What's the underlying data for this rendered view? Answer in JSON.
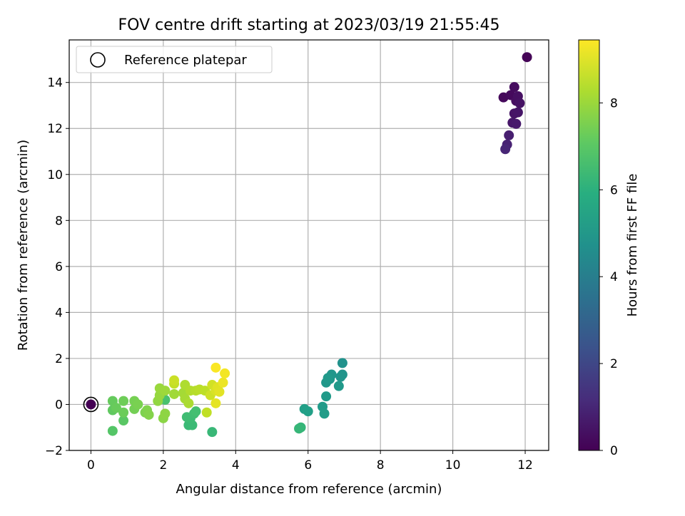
{
  "chart_data": {
    "type": "scatter",
    "title": "FOV centre drift starting at 2023/03/19 21:55:45",
    "xlabel": "Angular distance from reference (arcmin)",
    "ylabel": "Rotation from reference (arcmin)",
    "xlim": [
      -0.6,
      12.65
    ],
    "ylim": [
      -2.0,
      15.85
    ],
    "xticks": [
      0,
      2,
      4,
      6,
      8,
      10,
      12
    ],
    "yticks": [
      -2,
      0,
      2,
      4,
      6,
      8,
      10,
      12,
      14
    ],
    "grid": true,
    "legend": {
      "position": "top-left",
      "entries": [
        "Reference platepar"
      ]
    },
    "reference_point": {
      "x": 0,
      "y": 0
    },
    "colorbar": {
      "label": "Hours from first FF file",
      "range": [
        0,
        9.45
      ],
      "ticks": [
        0,
        2,
        4,
        6,
        8
      ],
      "colormap": "viridis"
    },
    "points": [
      {
        "x": 12.05,
        "y": 15.1,
        "h": 0.1
      },
      {
        "x": 11.4,
        "y": 13.35,
        "h": 0.2
      },
      {
        "x": 11.6,
        "y": 13.45,
        "h": 0.25
      },
      {
        "x": 11.7,
        "y": 13.8,
        "h": 0.3
      },
      {
        "x": 11.75,
        "y": 13.2,
        "h": 0.35
      },
      {
        "x": 11.8,
        "y": 13.4,
        "h": 0.4
      },
      {
        "x": 11.85,
        "y": 13.1,
        "h": 0.45
      },
      {
        "x": 11.7,
        "y": 12.65,
        "h": 0.5
      },
      {
        "x": 11.8,
        "y": 12.7,
        "h": 0.55
      },
      {
        "x": 11.65,
        "y": 12.25,
        "h": 0.6
      },
      {
        "x": 11.75,
        "y": 12.2,
        "h": 0.65
      },
      {
        "x": 11.55,
        "y": 11.7,
        "h": 0.8
      },
      {
        "x": 11.5,
        "y": 11.3,
        "h": 0.9
      },
      {
        "x": 11.45,
        "y": 11.1,
        "h": 1.0
      },
      {
        "x": 0.0,
        "y": 0.0,
        "h": 0.0
      },
      {
        "x": 6.95,
        "y": 1.8,
        "h": 4.8
      },
      {
        "x": 6.95,
        "y": 1.3,
        "h": 4.85
      },
      {
        "x": 6.9,
        "y": 1.2,
        "h": 4.9
      },
      {
        "x": 6.65,
        "y": 1.3,
        "h": 4.95
      },
      {
        "x": 6.6,
        "y": 1.1,
        "h": 5.0
      },
      {
        "x": 6.5,
        "y": 0.95,
        "h": 5.0
      },
      {
        "x": 6.55,
        "y": 1.15,
        "h": 5.05
      },
      {
        "x": 6.85,
        "y": 0.8,
        "h": 5.05
      },
      {
        "x": 6.5,
        "y": 0.35,
        "h": 5.1
      },
      {
        "x": 6.4,
        "y": -0.1,
        "h": 5.15
      },
      {
        "x": 6.45,
        "y": -0.4,
        "h": 5.2
      },
      {
        "x": 5.9,
        "y": -0.2,
        "h": 5.3
      },
      {
        "x": 6.0,
        "y": -0.3,
        "h": 5.35
      },
      {
        "x": 5.8,
        "y": -1.0,
        "h": 6.2
      },
      {
        "x": 5.75,
        "y": -1.05,
        "h": 6.25
      },
      {
        "x": 3.35,
        "y": -1.2,
        "h": 6.3
      },
      {
        "x": 2.7,
        "y": -0.9,
        "h": 6.35
      },
      {
        "x": 2.8,
        "y": -0.9,
        "h": 6.4
      },
      {
        "x": 2.75,
        "y": -0.6,
        "h": 6.45
      },
      {
        "x": 2.65,
        "y": -0.55,
        "h": 6.5
      },
      {
        "x": 2.85,
        "y": -0.4,
        "h": 6.55
      },
      {
        "x": 2.9,
        "y": -0.3,
        "h": 6.6
      },
      {
        "x": 2.05,
        "y": 0.2,
        "h": 6.7
      },
      {
        "x": 0.6,
        "y": -1.15,
        "h": 6.9
      },
      {
        "x": 0.9,
        "y": -0.7,
        "h": 7.0
      },
      {
        "x": 0.6,
        "y": -0.25,
        "h": 7.1
      },
      {
        "x": 0.6,
        "y": 0.15,
        "h": 7.2
      },
      {
        "x": 0.7,
        "y": -0.15,
        "h": 7.25
      },
      {
        "x": 0.9,
        "y": -0.35,
        "h": 7.3
      },
      {
        "x": 0.9,
        "y": 0.15,
        "h": 7.35
      },
      {
        "x": 1.2,
        "y": -0.2,
        "h": 7.45
      },
      {
        "x": 1.2,
        "y": 0.15,
        "h": 7.5
      },
      {
        "x": 1.3,
        "y": 0.0,
        "h": 7.55
      },
      {
        "x": 1.5,
        "y": -0.35,
        "h": 7.6
      },
      {
        "x": 1.55,
        "y": -0.25,
        "h": 7.65
      },
      {
        "x": 1.6,
        "y": -0.45,
        "h": 7.7
      },
      {
        "x": 2.0,
        "y": -0.6,
        "h": 7.8
      },
      {
        "x": 2.05,
        "y": -0.4,
        "h": 7.85
      },
      {
        "x": 1.85,
        "y": 0.15,
        "h": 7.9
      },
      {
        "x": 1.9,
        "y": 0.4,
        "h": 7.95
      },
      {
        "x": 1.9,
        "y": 0.7,
        "h": 8.0
      },
      {
        "x": 2.05,
        "y": 0.6,
        "h": 8.05
      },
      {
        "x": 2.3,
        "y": 0.45,
        "h": 8.1
      },
      {
        "x": 2.55,
        "y": 0.5,
        "h": 8.15
      },
      {
        "x": 2.6,
        "y": 0.25,
        "h": 8.2
      },
      {
        "x": 2.7,
        "y": 0.05,
        "h": 8.25
      },
      {
        "x": 2.6,
        "y": 0.85,
        "h": 8.3
      },
      {
        "x": 2.75,
        "y": 0.6,
        "h": 8.35
      },
      {
        "x": 2.9,
        "y": 0.6,
        "h": 8.4
      },
      {
        "x": 3.0,
        "y": 0.65,
        "h": 8.45
      },
      {
        "x": 3.15,
        "y": 0.6,
        "h": 8.5
      },
      {
        "x": 3.2,
        "y": -0.35,
        "h": 8.55
      },
      {
        "x": 2.3,
        "y": 0.9,
        "h": 8.6
      },
      {
        "x": 2.3,
        "y": 1.05,
        "h": 8.7
      },
      {
        "x": 3.3,
        "y": 0.4,
        "h": 8.75
      },
      {
        "x": 3.35,
        "y": 0.85,
        "h": 8.8
      },
      {
        "x": 3.45,
        "y": 0.6,
        "h": 8.9
      },
      {
        "x": 3.5,
        "y": 0.75,
        "h": 9.0
      },
      {
        "x": 3.55,
        "y": 0.55,
        "h": 9.05
      },
      {
        "x": 3.45,
        "y": 0.05,
        "h": 9.1
      },
      {
        "x": 3.65,
        "y": 0.95,
        "h": 9.2
      },
      {
        "x": 3.7,
        "y": 1.35,
        "h": 9.3
      },
      {
        "x": 3.45,
        "y": 1.6,
        "h": 9.4
      }
    ]
  }
}
